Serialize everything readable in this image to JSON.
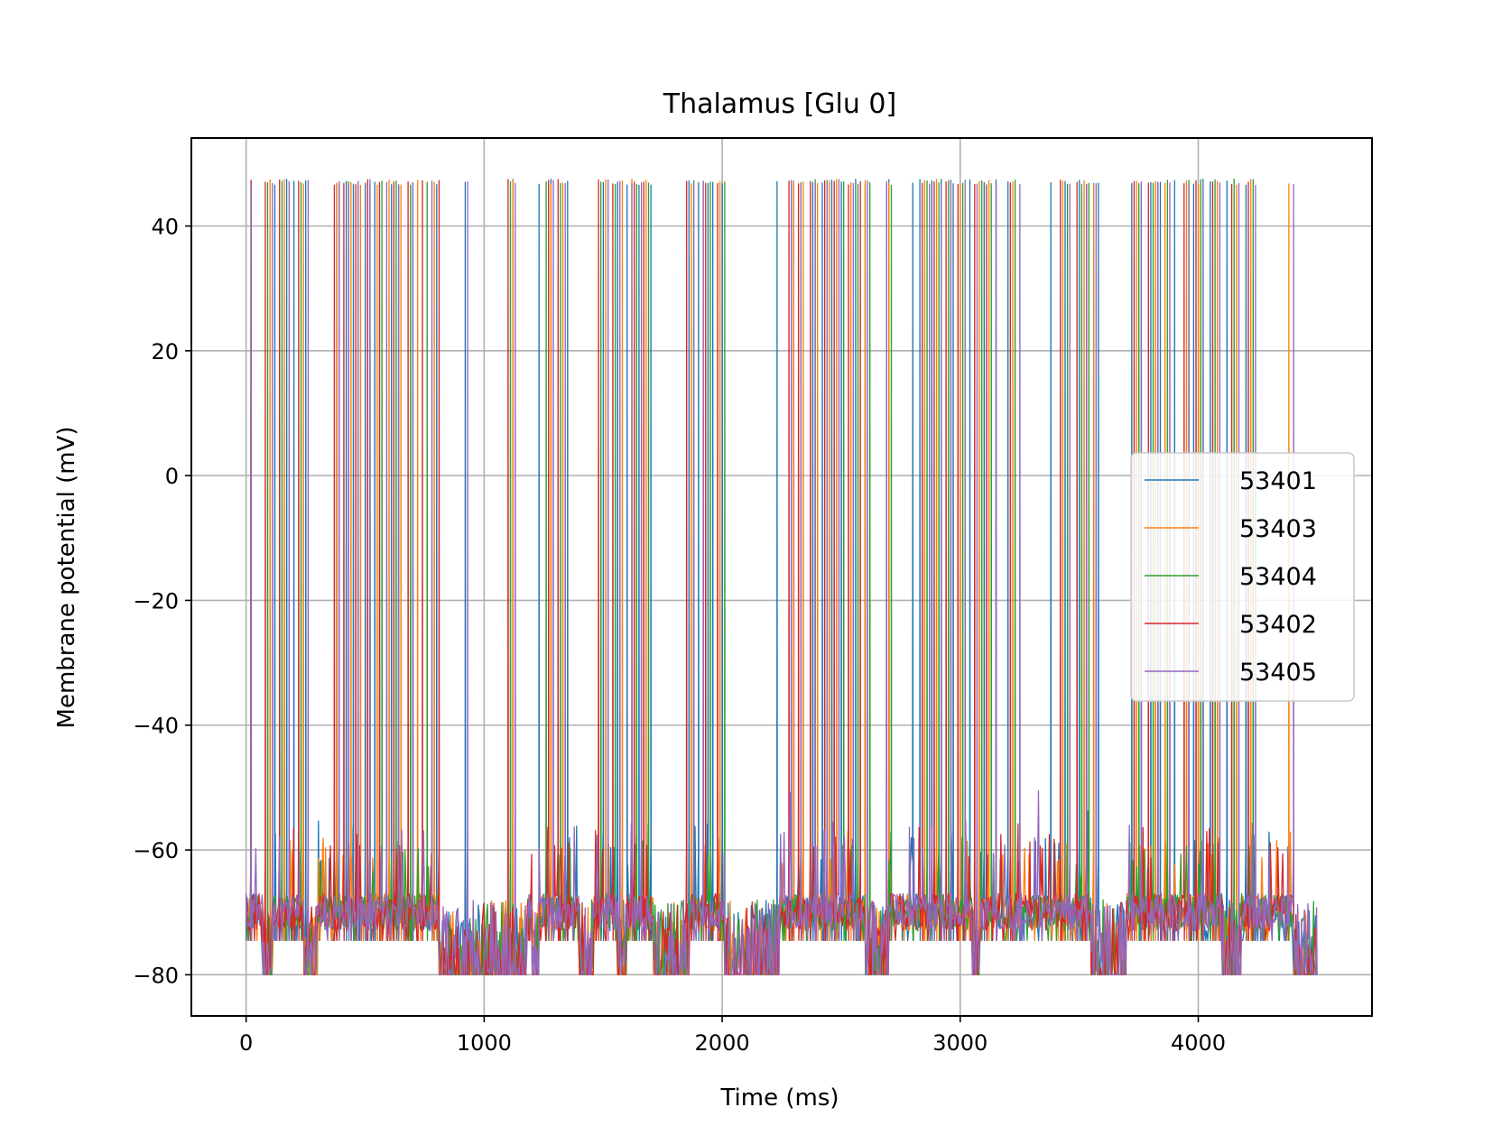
{
  "chart_data": {
    "type": "line",
    "title": "Thalamus [Glu 0]",
    "xlabel": "Time (ms)",
    "ylabel": "Membrane potential (mV)",
    "xlim": [
      -230,
      4730
    ],
    "ylim": [
      -86.6,
      54.1
    ],
    "xticks": [
      0,
      1000,
      2000,
      3000,
      4000
    ],
    "xtick_labels": [
      "0",
      "1000",
      "2000",
      "3000",
      "4000"
    ],
    "yticks": [
      -80,
      -60,
      -40,
      -20,
      0,
      20,
      40
    ],
    "ytick_labels": [
      "−80",
      "−60",
      "−40",
      "−20",
      "0",
      "20",
      "40"
    ],
    "grid": true,
    "legend_position": "center-right",
    "resting_mV": -70,
    "spike_peak_mV": 47.5,
    "after_hyperpolarization_mV": -74.5,
    "burst_floor_mV": -80,
    "series": [
      {
        "name": "53401",
        "color": "#1f77b4",
        "spike_times_ms": [
          20,
          120,
          170,
          200,
          250,
          380,
          420,
          450,
          500,
          540,
          610,
          640,
          700,
          800,
          920,
          1120,
          1230,
          1280,
          1350,
          1500,
          1560,
          1600,
          1650,
          1700,
          1860,
          1900,
          1940,
          1960,
          2000,
          2230,
          2300,
          2380,
          2420,
          2460,
          2500,
          2560,
          2600,
          2700,
          2800,
          2830,
          2880,
          2920,
          2970,
          3040,
          3100,
          3150,
          3200,
          3380,
          3440,
          3500,
          3560,
          3580,
          3720,
          3760,
          3800,
          3840,
          3900,
          3980,
          4020,
          4050,
          4120,
          4200
        ],
        "subthreshold_peaks_mV": [
          -56,
          -52,
          -60,
          -58,
          -59,
          -56,
          -55,
          -57,
          -60,
          -57,
          -58,
          -55,
          -58,
          -57,
          -56,
          -57,
          -59,
          -58,
          -56,
          -55
        ]
      },
      {
        "name": "53403",
        "color": "#ff7f0e",
        "spike_times_ms": [
          20,
          100,
          160,
          240,
          380,
          440,
          480,
          550,
          600,
          650,
          720,
          790,
          1120,
          1280,
          1330,
          1510,
          1580,
          1620,
          1680,
          1870,
          1920,
          1990,
          2300,
          2340,
          2400,
          2450,
          2480,
          2540,
          2600,
          2700,
          2850,
          2900,
          2960,
          3000,
          3080,
          3120,
          3220,
          3430,
          3520,
          3560,
          3740,
          3820,
          3860,
          3950,
          4000,
          4080,
          4160,
          4220,
          4380
        ],
        "subthreshold_peaks_mV": [
          -58,
          -60,
          -57,
          -59,
          -58,
          -56,
          -58,
          -59,
          -57,
          -60
        ]
      },
      {
        "name": "53404",
        "color": "#2ca02c",
        "spike_times_ms": [
          20,
          90,
          150,
          230,
          390,
          430,
          470,
          520,
          570,
          630,
          690,
          760,
          1110,
          1260,
          1320,
          1490,
          1550,
          1640,
          1690,
          1880,
          1950,
          2010,
          2290,
          2330,
          2390,
          2440,
          2510,
          2570,
          2620,
          2710,
          2860,
          2910,
          2950,
          3010,
          3090,
          3130,
          3230,
          3450,
          3510,
          3540,
          3750,
          3810,
          3870,
          3960,
          4010,
          4070,
          4150,
          4230
        ],
        "subthreshold_peaks_mV": [
          -59,
          -60,
          -58,
          -60,
          -59,
          -58,
          -60,
          -59
        ]
      },
      {
        "name": "53402",
        "color": "#d62728",
        "spike_times_ms": [
          20,
          80,
          140,
          220,
          370,
          410,
          460,
          510,
          560,
          620,
          680,
          740,
          810,
          1100,
          1270,
          1310,
          1480,
          1540,
          1630,
          1670,
          1850,
          1930,
          1980,
          2280,
          2320,
          2370,
          2430,
          2470,
          2530,
          2580,
          2690,
          2840,
          2890,
          2940,
          2990,
          3060,
          3110,
          3210,
          3420,
          3490,
          3530,
          3730,
          3790,
          3830,
          3940,
          3990,
          4060,
          4140,
          4210
        ],
        "subthreshold_peaks_mV": [
          -56,
          -58,
          -57,
          -55,
          -58,
          -57,
          -56,
          -59,
          -57,
          -56
        ]
      },
      {
        "name": "53405",
        "color": "#9467bd",
        "spike_times_ms": [
          20,
          110,
          180,
          260,
          390,
          430,
          470,
          520,
          590,
          640,
          700,
          780,
          930,
          1130,
          1290,
          1340,
          1520,
          1570,
          1620,
          1660,
          1880,
          1920,
          2290,
          2330,
          2390,
          2440,
          2490,
          2550,
          2610,
          2690,
          2870,
          2920,
          2960,
          3020,
          3070,
          3150,
          3250,
          3460,
          3530,
          3570,
          3760,
          3830,
          3880,
          3960,
          4020,
          4090,
          4170,
          4240,
          4400
        ],
        "subthreshold_peaks_mV": [
          -56,
          -55,
          -57,
          -58,
          -55,
          -56,
          -57,
          -56,
          -54,
          -55,
          -57,
          -56,
          -55,
          -50,
          -56
        ]
      }
    ]
  }
}
